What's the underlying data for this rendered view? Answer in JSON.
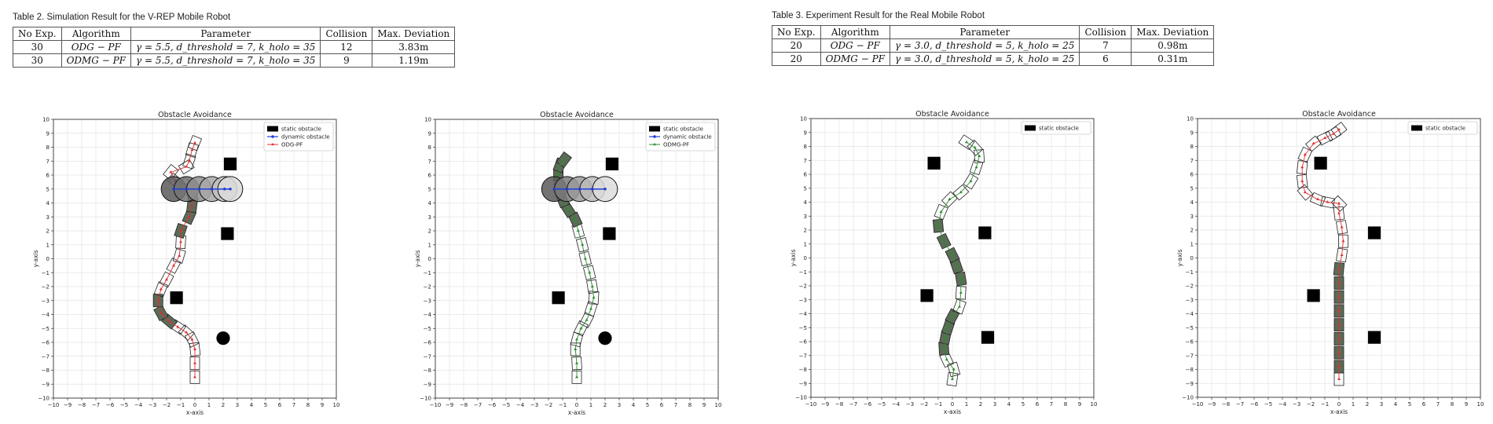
{
  "tables": [
    {
      "caption": "Table 2. Simulation Result for the V-REP Mobile Robot",
      "headers": [
        "No Exp.",
        "Algorithm",
        "Parameter",
        "Collision",
        "Max. Deviation"
      ],
      "rows": [
        [
          "30",
          "ODG − PF",
          "γ = 5.5, d_threshold = 7, k_holo = 35",
          "12",
          "3.83m"
        ],
        [
          "30",
          "ODMG − PF",
          "γ = 5.5, d_threshold = 7, k_holo = 35",
          "9",
          "1.19m"
        ]
      ]
    },
    {
      "caption": "Table 3. Experiment Result for the Real Mobile Robot",
      "headers": [
        "No Exp.",
        "Algorithm",
        "Parameter",
        "Collision",
        "Max. Deviation"
      ],
      "rows": [
        [
          "20",
          "ODG − PF",
          "γ = 3.0, d_threshold = 5, k_holo = 25",
          "7",
          "0.98m"
        ],
        [
          "20",
          "ODMG − PF",
          "γ = 3.0, d_threshold = 5, k_holo = 25",
          "6",
          "0.31m"
        ]
      ]
    }
  ],
  "chart_data": [
    {
      "type": "scatter",
      "title": "Obstacle Avoidance",
      "xlabel": "x-axis",
      "ylabel": "y-axis",
      "xlim": [
        -10,
        10
      ],
      "ylim": [
        -10,
        10
      ],
      "grid": true,
      "legend": "top-right",
      "legend_entries": [
        "static obstacle",
        "dynamic obstacle",
        "ODG-PF"
      ],
      "static_obstacles": [
        {
          "shape": "square",
          "x": 2.5,
          "y": 6.8
        },
        {
          "shape": "square",
          "x": 2.3,
          "y": 1.8
        },
        {
          "shape": "square",
          "x": -1.3,
          "y": -2.8
        },
        {
          "shape": "circle",
          "x": 2.0,
          "y": -5.7
        }
      ],
      "dynamic_obstacle": {
        "y": 5.0,
        "x_positions": [
          -1.5,
          -0.6,
          0.3,
          1.2,
          2.1,
          2.5
        ]
      },
      "path_color": "#e03030",
      "path": [
        [
          0,
          -8.5
        ],
        [
          0,
          -7.5
        ],
        [
          0,
          -6.5
        ],
        [
          -0.2,
          -5.8
        ],
        [
          -0.6,
          -5.3
        ],
        [
          -1.2,
          -4.9
        ],
        [
          -1.8,
          -4.5
        ],
        [
          -2.4,
          -3.9
        ],
        [
          -2.6,
          -3.0
        ],
        [
          -2.4,
          -2.2
        ],
        [
          -2.0,
          -1.5
        ],
        [
          -1.5,
          -0.5
        ],
        [
          -1.1,
          0.2
        ],
        [
          -1.0,
          1.2
        ],
        [
          -1.0,
          2.0
        ],
        [
          -0.4,
          3.0
        ],
        [
          -0.2,
          3.8
        ],
        [
          -0.2,
          4.6
        ],
        [
          -0.6,
          5.3
        ],
        [
          -1.4,
          5.6
        ],
        [
          -1.7,
          6.2
        ],
        [
          -0.6,
          6.6
        ],
        [
          -0.4,
          7.0
        ],
        [
          -0.2,
          7.8
        ],
        [
          0,
          8.3
        ]
      ],
      "shaded_steps": [
        6,
        7,
        8,
        14,
        15,
        16,
        17
      ]
    },
    {
      "type": "scatter",
      "title": "Obstacle Avoidance",
      "xlabel": "x-axis",
      "ylabel": "y-axis",
      "xlim": [
        -10,
        10
      ],
      "ylim": [
        -10,
        10
      ],
      "grid": true,
      "legend": "top-right",
      "legend_entries": [
        "static obstacle",
        "dynamic obstacle",
        "ODMG-PF"
      ],
      "static_obstacles": [
        {
          "shape": "square",
          "x": 2.5,
          "y": 6.8
        },
        {
          "shape": "square",
          "x": 2.3,
          "y": 1.8
        },
        {
          "shape": "square",
          "x": -1.3,
          "y": -2.8
        },
        {
          "shape": "circle",
          "x": 2.0,
          "y": -5.7
        }
      ],
      "dynamic_obstacle": {
        "y": 5.0,
        "x_positions": [
          -1.6,
          -0.7,
          0.2,
          1.1,
          2.0
        ]
      },
      "path_color": "#2e8b2e",
      "path": [
        [
          0,
          -8.5
        ],
        [
          0,
          -7.5
        ],
        [
          -0.1,
          -6.5
        ],
        [
          0,
          -5.8
        ],
        [
          0.3,
          -5.0
        ],
        [
          0.7,
          -4.4
        ],
        [
          1.0,
          -3.6
        ],
        [
          1.2,
          -2.8
        ],
        [
          1.1,
          -2.0
        ],
        [
          0.9,
          -1.0
        ],
        [
          0.6,
          0
        ],
        [
          0.4,
          1.0
        ],
        [
          0.1,
          2.0
        ],
        [
          -0.1,
          2.8
        ],
        [
          -0.6,
          3.5
        ],
        [
          -1.0,
          4.2
        ],
        [
          -1.2,
          5.0
        ],
        [
          -1.3,
          6.0
        ],
        [
          -1.2,
          6.7
        ],
        [
          -0.9,
          7.1
        ]
      ],
      "shaded_steps": [
        13,
        14,
        15,
        16,
        17,
        18,
        19
      ]
    },
    {
      "type": "scatter",
      "title": "Obstacle Avoidance",
      "xlabel": "x-axis",
      "ylabel": "y-axis",
      "xlim": [
        -10,
        10
      ],
      "ylim": [
        -10,
        10
      ],
      "grid": true,
      "legend": "top-right",
      "legend_entries": [
        "static obstacle"
      ],
      "static_obstacles": [
        {
          "shape": "square",
          "x": -1.3,
          "y": 6.8
        },
        {
          "shape": "square",
          "x": 2.3,
          "y": 1.8
        },
        {
          "shape": "square",
          "x": -1.8,
          "y": -2.7
        },
        {
          "shape": "square",
          "x": 2.5,
          "y": -5.7
        }
      ],
      "path_color": "#2e8b2e",
      "path": [
        [
          0,
          -8.7
        ],
        [
          0.1,
          -8.0
        ],
        [
          -0.4,
          -7.3
        ],
        [
          -0.6,
          -6.5
        ],
        [
          -0.5,
          -5.7
        ],
        [
          -0.3,
          -5.0
        ],
        [
          0,
          -4.2
        ],
        [
          0.5,
          -3.5
        ],
        [
          0.6,
          -2.5
        ],
        [
          0.6,
          -1.5
        ],
        [
          0.3,
          -0.6
        ],
        [
          0,
          0.2
        ],
        [
          -0.6,
          1.2
        ],
        [
          -1.0,
          2.3
        ],
        [
          -0.8,
          3.3
        ],
        [
          -0.2,
          4.2
        ],
        [
          0.6,
          4.7
        ],
        [
          1.3,
          5.5
        ],
        [
          1.7,
          6.5
        ],
        [
          1.9,
          7.3
        ],
        [
          1.6,
          7.9
        ],
        [
          1.0,
          8.3
        ]
      ],
      "shaded_steps": [
        3,
        4,
        5,
        6,
        9,
        10,
        11,
        12,
        13
      ]
    },
    {
      "type": "scatter",
      "title": "Obstacle Avoidance",
      "xlabel": "x-axis",
      "ylabel": "y-axis",
      "xlim": [
        -10,
        10
      ],
      "ylim": [
        -10,
        10
      ],
      "grid": true,
      "legend": "top-right",
      "legend_entries": [
        "static obstacle"
      ],
      "static_obstacles": [
        {
          "shape": "square",
          "x": -1.3,
          "y": 6.8
        },
        {
          "shape": "square",
          "x": 2.5,
          "y": 1.8
        },
        {
          "shape": "square",
          "x": -1.8,
          "y": -2.7
        },
        {
          "shape": "square",
          "x": 2.5,
          "y": -5.7
        }
      ],
      "path_color": "#e03030",
      "path": [
        [
          0,
          -8.7
        ],
        [
          0,
          -7.8
        ],
        [
          0,
          -6.8
        ],
        [
          0,
          -5.8
        ],
        [
          0,
          -4.8
        ],
        [
          0,
          -3.8
        ],
        [
          0,
          -2.8
        ],
        [
          0,
          -1.8
        ],
        [
          0,
          -0.8
        ],
        [
          0.2,
          0.2
        ],
        [
          0.3,
          1.2
        ],
        [
          0.2,
          2.2
        ],
        [
          0,
          3.2
        ],
        [
          0,
          3.9
        ],
        [
          -0.8,
          4.0
        ],
        [
          -1.5,
          4.2
        ],
        [
          -2.4,
          4.7
        ],
        [
          -2.6,
          5.5
        ],
        [
          -2.6,
          6.5
        ],
        [
          -2.4,
          7.4
        ],
        [
          -1.8,
          8.2
        ],
        [
          -1.0,
          8.6
        ],
        [
          -0.4,
          8.9
        ],
        [
          0,
          9.2
        ]
      ],
      "shaded_steps": [
        1,
        2,
        3,
        4,
        5,
        6,
        7,
        8
      ]
    }
  ]
}
